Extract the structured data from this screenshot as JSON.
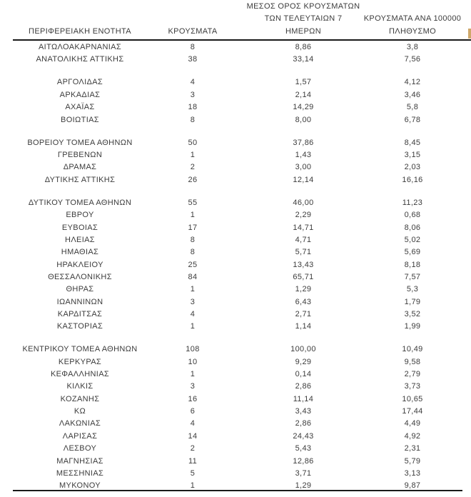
{
  "page": {
    "background": "#ffffff",
    "text_color": "#3c3c3c",
    "rule_color": "#1a1a1a"
  },
  "header": {
    "col1": "ΠΕΡΙΦΕΡΕΙΑΚΗ ΕΝΟΤΗΤΑ",
    "col2": "ΚΡΟΥΣΜΑΤΑ",
    "col3_lines": [
      "ΜΕΣΟΣ ΟΡΟΣ ΚΡΟΥΣΜΑΤΩΝ",
      "ΤΩΝ ΤΕΛΕΥΤΑΙΩΝ 7",
      "ΗΜΕΡΩΝ"
    ],
    "col4_lines": [
      "ΚΡΟΥΣΜΑΤΑ ΑΝΑ 100000",
      "ΠΛΗΘΥΣΜΟ"
    ]
  },
  "edge_artifact": {
    "description": "clipped edge of an additional highlighted column at right margin",
    "color": "#cfa86a"
  },
  "chart_data": {
    "type": "table",
    "title": "",
    "columns": [
      "ΠΕΡΙΦΕΡΕΙΑΚΗ ΕΝΟΤΗΤΑ",
      "ΚΡΟΥΣΜΑΤΑ",
      "ΜΕΣΟΣ ΟΡΟΣ ΚΡΟΥΣΜΑΤΩΝ ΤΩΝ ΤΕΛΕΥΤΑΙΩΝ 7 ΗΜΕΡΩΝ",
      "ΚΡΟΥΣΜΑΤΑ ΑΝΑ 100000 ΠΛΗΘΥΣΜΟ"
    ],
    "rows": [
      [
        "ΑΙΤΩΛΟΑΚΑΡΝΑΝΙΑΣ",
        "8",
        "8,86",
        "3,8"
      ],
      [
        "ΑΝΑΤΟΛΙΚΗΣ ΑΤΤΙΚΗΣ",
        "38",
        "33,14",
        "7,56"
      ],
      [
        "ΑΡΓΟΛΙΔΑΣ",
        "4",
        "1,57",
        "4,12"
      ],
      [
        "ΑΡΚΑΔΙΑΣ",
        "3",
        "2,14",
        "3,46"
      ],
      [
        "ΑΧΑΪΑΣ",
        "18",
        "14,29",
        "5,8"
      ],
      [
        "ΒΟΙΩΤΙΑΣ",
        "8",
        "8,00",
        "6,78"
      ],
      [
        "ΒΟΡΕΙΟΥ ΤΟΜΕΑ ΑΘΗΝΩΝ",
        "50",
        "37,86",
        "8,45"
      ],
      [
        "ΓΡΕΒΕΝΩΝ",
        "1",
        "1,43",
        "3,15"
      ],
      [
        "ΔΡΑΜΑΣ",
        "2",
        "3,00",
        "2,03"
      ],
      [
        "ΔΥΤΙΚΗΣ ΑΤΤΙΚΗΣ",
        "26",
        "12,14",
        "16,16"
      ],
      [
        "ΔΥΤΙΚΟΥ ΤΟΜΕΑ ΑΘΗΝΩΝ",
        "55",
        "46,00",
        "11,23"
      ],
      [
        "ΕΒΡΟΥ",
        "1",
        "2,29",
        "0,68"
      ],
      [
        "ΕΥΒΟΙΑΣ",
        "17",
        "14,71",
        "8,06"
      ],
      [
        "ΗΛΕΙΑΣ",
        "8",
        "4,71",
        "5,02"
      ],
      [
        "ΗΜΑΘΙΑΣ",
        "8",
        "5,71",
        "5,69"
      ],
      [
        "ΗΡΑΚΛΕΙΟΥ",
        "25",
        "13,43",
        "8,18"
      ],
      [
        "ΘΕΣΣΑΛΟΝΙΚΗΣ",
        "84",
        "65,71",
        "7,57"
      ],
      [
        "ΘΗΡΑΣ",
        "1",
        "1,29",
        "5,3"
      ],
      [
        "ΙΩΑΝΝΙΝΩΝ",
        "3",
        "6,43",
        "1,79"
      ],
      [
        "ΚΑΡΔΙΤΣΑΣ",
        "4",
        "2,71",
        "3,52"
      ],
      [
        "ΚΑΣΤΟΡΙΑΣ",
        "1",
        "1,14",
        "1,99"
      ],
      [
        "ΚΕΝΤΡΙΚΟΥ ΤΟΜΕΑ ΑΘΗΝΩΝ",
        "108",
        "100,00",
        "10,49"
      ],
      [
        "ΚΕΡΚΥΡΑΣ",
        "10",
        "9,29",
        "9,58"
      ],
      [
        "ΚΕΦΑΛΛΗΝΙΑΣ",
        "1",
        "0,14",
        "2,79"
      ],
      [
        "ΚΙΛΚΙΣ",
        "3",
        "2,86",
        "3,73"
      ],
      [
        "ΚΟΖΑΝΗΣ",
        "16",
        "11,14",
        "10,65"
      ],
      [
        "ΚΩ",
        "6",
        "3,43",
        "17,44"
      ],
      [
        "ΛΑΚΩΝΙΑΣ",
        "4",
        "2,86",
        "4,49"
      ],
      [
        "ΛΑΡΙΣΑΣ",
        "14",
        "24,43",
        "4,92"
      ],
      [
        "ΛΕΣΒΟΥ",
        "2",
        "5,43",
        "2,31"
      ],
      [
        "ΜΑΓΝΗΣΙΑΣ",
        "11",
        "12,86",
        "5,79"
      ],
      [
        "ΜΕΣΣΗΝΙΑΣ",
        "5",
        "3,71",
        "3,13"
      ],
      [
        "ΜΥΚΟΝΟΥ",
        "1",
        "1,29",
        "9,87"
      ]
    ],
    "group_breaks_after_row_index": [
      1,
      5,
      9,
      20
    ]
  }
}
